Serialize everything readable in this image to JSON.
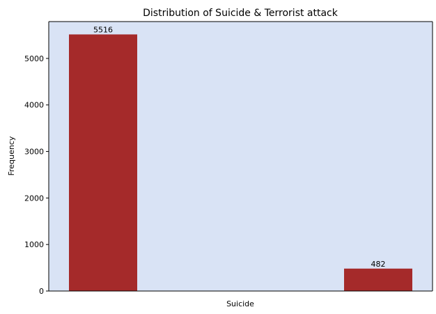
{
  "chart_data": {
    "type": "bar",
    "title": "Distribution of Suicide & Terrorist attack",
    "xlabel": "Suicide",
    "ylabel": "Frequency",
    "categories": [
      "",
      ""
    ],
    "values": [
      5516,
      482
    ],
    "data_labels": [
      "5516",
      "482"
    ],
    "ylim": [
      0,
      5792
    ],
    "yticks": [
      0,
      1000,
      2000,
      3000,
      4000,
      5000
    ],
    "ytick_labels": [
      "0",
      "1000",
      "2000",
      "3000",
      "4000",
      "5000"
    ],
    "grid": false,
    "colors": {
      "bar": "#a52a2a",
      "plot_background": "#d9e3f5",
      "figure_background": "#ffffff"
    }
  }
}
